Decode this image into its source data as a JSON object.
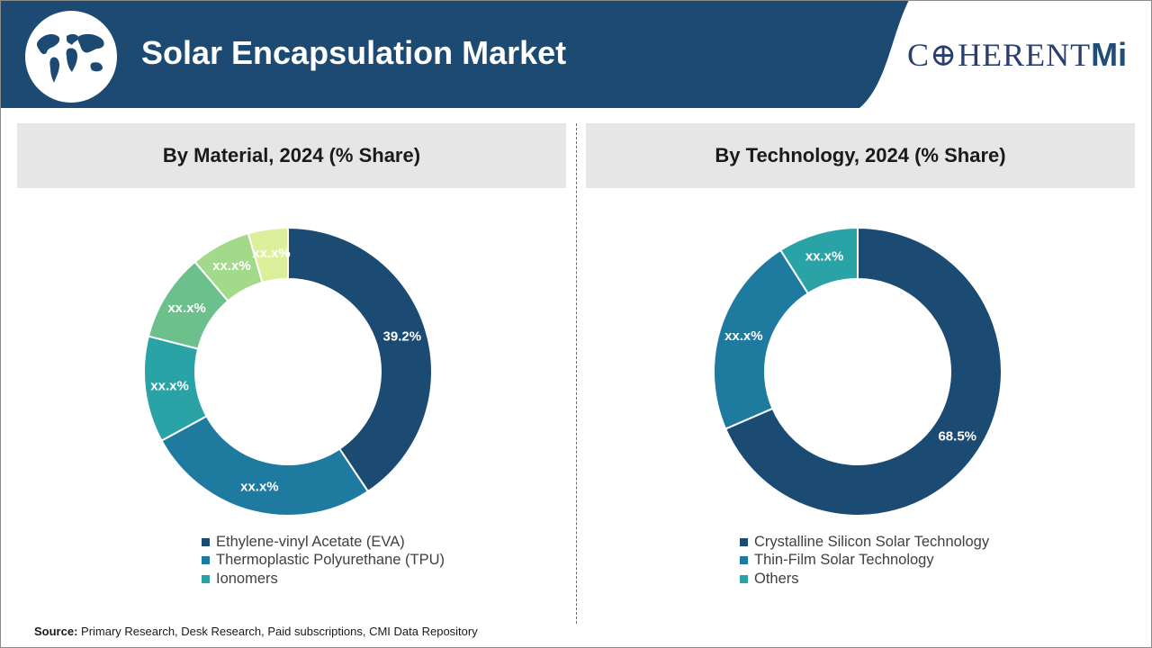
{
  "header": {
    "title": "Solar Encapsulation Market",
    "logo_main": "C⊕HERENT",
    "logo_suffix": "Mi",
    "colors": {
      "banner": "#1d4a72",
      "accent": "#1f4e79"
    },
    "icon": "world-map-globe-icon"
  },
  "panels": {
    "left_title": "By Material, 2024 (% Share)",
    "right_title": "By Technology, 2024 (% Share)"
  },
  "chart_data": [
    {
      "type": "donut",
      "title": "By Material, 2024 (% Share)",
      "categories": [
        "Ethylene-vinyl Acetate (EVA)",
        "Thermoplastic Polyurethane (TPU)",
        "",
        "",
        "",
        ""
      ],
      "values": [
        39.2,
        25.5,
        11.5,
        9.5,
        6.5,
        4.3
      ],
      "labels": [
        "39.2%",
        "xx.x%",
        "xx.x%",
        "xx.x%",
        "xx.x%",
        "xx.x%"
      ],
      "colors": [
        "#1b4a73",
        "#1f7aa0",
        "#2aa3a6",
        "#6cc08b",
        "#a3d98a",
        "#dcef9a"
      ],
      "legend": [
        {
          "label": "Ethylene-vinyl Acetate (EVA)",
          "color": "#1b4a73"
        },
        {
          "label": "Thermoplastic Polyurethane (TPU)",
          "color": "#1f7aa0"
        },
        {
          "label": "Ionomers",
          "color": "#2aa3a6"
        }
      ]
    },
    {
      "type": "donut",
      "title": "By Technology, 2024 (% Share)",
      "categories": [
        "Crystalline Silicon Solar Technology",
        "Thin-Film Solar Technology",
        "Others"
      ],
      "values": [
        68.5,
        22.5,
        9.0
      ],
      "labels": [
        "68.5%",
        "xx.x%",
        "xx.x%"
      ],
      "colors": [
        "#1b4a73",
        "#1f7aa0",
        "#2aa3a6"
      ],
      "legend": [
        {
          "label": "Crystalline Silicon Solar Technology",
          "color": "#1b4a73"
        },
        {
          "label": "Thin-Film Solar Technology",
          "color": "#1f7aa0"
        },
        {
          "label": "Others",
          "color": "#2aa3a6"
        }
      ]
    }
  ],
  "source": {
    "label": "Source:",
    "text": " Primary Research, Desk Research, Paid subscriptions, CMI Data Repository"
  }
}
